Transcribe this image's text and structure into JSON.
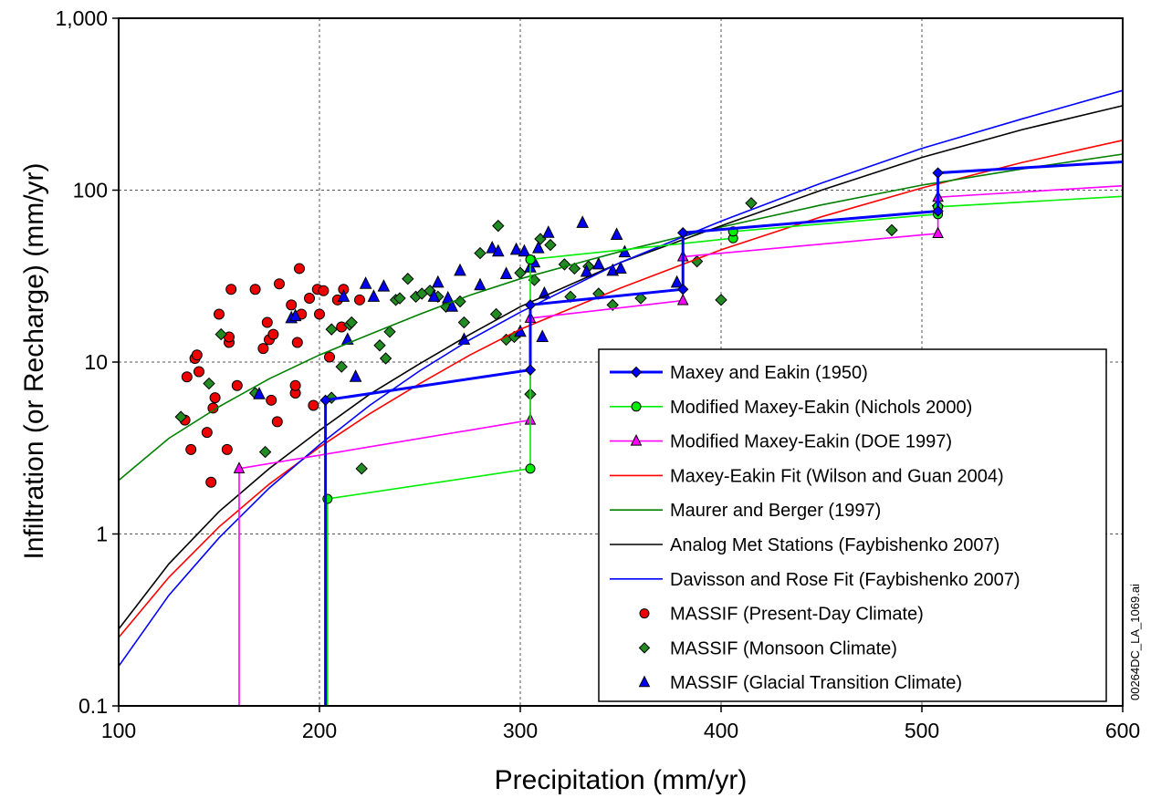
{
  "chart_data": {
    "type": "scatter",
    "title": "",
    "xlabel": "Precipitation (mm/yr)",
    "ylabel": "Infiltration (or Recharge) (mm/yr)",
    "xlim": [
      100,
      600
    ],
    "ylim": [
      0.1,
      1000
    ],
    "y_scale": "log",
    "grid": true,
    "legend_position": "bottom-right",
    "x_ticks": [
      "100",
      "200",
      "300",
      "400",
      "500",
      "600"
    ],
    "y_ticks": [
      "0.1",
      "1",
      "10",
      "100",
      "1,000"
    ],
    "side_note": "00264DC_LA_1069.ai",
    "series": [
      {
        "name": "Maxey and Eakin (1950)",
        "kind": "step-line",
        "color": "#0000ff",
        "marker": "diamond",
        "points": [
          [
            203,
            0.1
          ],
          [
            203,
            6.0
          ],
          [
            305,
            9.0
          ],
          [
            305,
            21.5
          ],
          [
            381,
            26.5
          ],
          [
            381,
            56.5
          ],
          [
            508,
            75.5
          ],
          [
            508,
            126
          ],
          [
            600,
            146
          ]
        ],
        "markers": [
          [
            203,
            6.0
          ],
          [
            305,
            9.0
          ],
          [
            305,
            21.5
          ],
          [
            381,
            26.5
          ],
          [
            381,
            56.5
          ],
          [
            508,
            75.5
          ],
          [
            508,
            126
          ]
        ]
      },
      {
        "name": "Modified Maxey-Eakin (Nichols 2000)",
        "kind": "step-line",
        "color": "#00ee00",
        "marker": "circle",
        "points": [
          [
            204,
            0.1
          ],
          [
            204,
            1.6
          ],
          [
            305,
            2.4
          ],
          [
            305,
            39.5
          ],
          [
            406,
            52.5
          ],
          [
            406,
            57.5
          ],
          [
            508,
            72.5
          ],
          [
            508,
            80.0
          ],
          [
            600,
            92.0
          ]
        ],
        "markers": [
          [
            204,
            1.6
          ],
          [
            305,
            2.4
          ],
          [
            305,
            39.5
          ],
          [
            406,
            52.5
          ],
          [
            406,
            57.5
          ],
          [
            508,
            72.5
          ],
          [
            508,
            80.0
          ]
        ]
      },
      {
        "name": "Modified Maxey-Eakin (DOE 1997)",
        "kind": "step-line",
        "color": "#ff00ff",
        "marker": "triangle",
        "points": [
          [
            160,
            0.1
          ],
          [
            160,
            2.4
          ],
          [
            305,
            4.6
          ],
          [
            305,
            18.0
          ],
          [
            381,
            22.8
          ],
          [
            381,
            41.0
          ],
          [
            508,
            56.0
          ],
          [
            508,
            91.0
          ],
          [
            600,
            106
          ]
        ],
        "markers": [
          [
            160,
            2.4
          ],
          [
            305,
            4.6
          ],
          [
            305,
            18.0
          ],
          [
            381,
            22.8
          ],
          [
            381,
            41.0
          ],
          [
            508,
            56.0
          ],
          [
            508,
            91.0
          ]
        ]
      },
      {
        "name": "Maxey-Eakin Fit (Wilson and Guan 2004)",
        "kind": "line",
        "color": "#ff0000",
        "points": [
          [
            100,
            0.25
          ],
          [
            125,
            0.56
          ],
          [
            150,
            1.1
          ],
          [
            175,
            1.95
          ],
          [
            200,
            3.2
          ],
          [
            225,
            5.0
          ],
          [
            250,
            7.5
          ],
          [
            275,
            11.0
          ],
          [
            300,
            15.5
          ],
          [
            350,
            27.0
          ],
          [
            400,
            45.0
          ],
          [
            450,
            70.0
          ],
          [
            500,
            103
          ],
          [
            550,
            145
          ],
          [
            600,
            195
          ]
        ]
      },
      {
        "name": "Maurer and Berger (1997)",
        "kind": "line",
        "color": "#008000",
        "points": [
          [
            100,
            2.05
          ],
          [
            125,
            3.6
          ],
          [
            150,
            5.5
          ],
          [
            175,
            8.0
          ],
          [
            200,
            11.0
          ],
          [
            225,
            14.5
          ],
          [
            250,
            19.0
          ],
          [
            275,
            24.5
          ],
          [
            300,
            30.5
          ],
          [
            350,
            44.0
          ],
          [
            400,
            61.0
          ],
          [
            450,
            82.0
          ],
          [
            500,
            107
          ],
          [
            550,
            133
          ],
          [
            600,
            162
          ]
        ]
      },
      {
        "name": "Analog Met Stations (Faybishenko 2007)",
        "kind": "line",
        "color": "#000000",
        "points": [
          [
            100,
            0.28
          ],
          [
            125,
            0.67
          ],
          [
            150,
            1.35
          ],
          [
            175,
            2.4
          ],
          [
            200,
            4.0
          ],
          [
            225,
            6.5
          ],
          [
            250,
            9.8
          ],
          [
            275,
            14.5
          ],
          [
            300,
            21.0
          ],
          [
            350,
            38.0
          ],
          [
            400,
            62.0
          ],
          [
            450,
            100
          ],
          [
            500,
            155
          ],
          [
            550,
            225
          ],
          [
            600,
            310
          ]
        ]
      },
      {
        "name": "Davisson and Rose Fit (Faybishenko 2007)",
        "kind": "line",
        "color": "#0000ff",
        "points": [
          [
            100,
            0.17
          ],
          [
            125,
            0.44
          ],
          [
            150,
            0.95
          ],
          [
            175,
            1.85
          ],
          [
            200,
            3.3
          ],
          [
            225,
            5.6
          ],
          [
            250,
            8.9
          ],
          [
            275,
            13.5
          ],
          [
            300,
            19.5
          ],
          [
            350,
            38.0
          ],
          [
            400,
            66.0
          ],
          [
            450,
            110
          ],
          [
            500,
            175
          ],
          [
            550,
            260
          ],
          [
            600,
            380
          ]
        ]
      },
      {
        "name": "MASSIF (Present-Day Climate)",
        "kind": "scatter",
        "color": "#ee0000",
        "marker": "circle",
        "points": [
          [
            133,
            4.6
          ],
          [
            134,
            8.2
          ],
          [
            136,
            3.1
          ],
          [
            138,
            10.5
          ],
          [
            139,
            11.0
          ],
          [
            140,
            8.8
          ],
          [
            144,
            3.9
          ],
          [
            146,
            2.0
          ],
          [
            147,
            5.4
          ],
          [
            148,
            6.2
          ],
          [
            150,
            19.0
          ],
          [
            154,
            3.1
          ],
          [
            155,
            13.0
          ],
          [
            155,
            14.0
          ],
          [
            156,
            26.5
          ],
          [
            159,
            7.3
          ],
          [
            168,
            26.5
          ],
          [
            172,
            12.0
          ],
          [
            174,
            17.0
          ],
          [
            175,
            13.5
          ],
          [
            176,
            6.0
          ],
          [
            177,
            14.5
          ],
          [
            179,
            4.5
          ],
          [
            180,
            28.5
          ],
          [
            186,
            21.5
          ],
          [
            188,
            6.6
          ],
          [
            188,
            7.3
          ],
          [
            189,
            13.0
          ],
          [
            190,
            35.0
          ],
          [
            191,
            19.0
          ],
          [
            195,
            23.5
          ],
          [
            197,
            5.6
          ],
          [
            199,
            26.5
          ],
          [
            200,
            19.0
          ],
          [
            202,
            26.0
          ],
          [
            205,
            10.7
          ],
          [
            209,
            23.0
          ],
          [
            211,
            16.0
          ],
          [
            212,
            26.5
          ],
          [
            220,
            23.0
          ]
        ]
      },
      {
        "name": "MASSIF (Monsoon Climate)",
        "kind": "scatter",
        "color": "#228b22",
        "marker": "diamond",
        "points": [
          [
            131,
            4.8
          ],
          [
            145,
            7.5
          ],
          [
            151,
            14.5
          ],
          [
            168,
            6.6
          ],
          [
            173,
            3.0
          ],
          [
            206,
            6.2
          ],
          [
            206,
            15.5
          ],
          [
            211,
            9.4
          ],
          [
            215,
            16.5
          ],
          [
            216,
            17.0
          ],
          [
            221,
            2.4
          ],
          [
            230,
            12.5
          ],
          [
            233,
            10.5
          ],
          [
            235,
            15.0
          ],
          [
            238,
            23.0
          ],
          [
            240,
            23.5
          ],
          [
            244,
            30.5
          ],
          [
            248,
            24.0
          ],
          [
            251,
            25.0
          ],
          [
            255,
            26.0
          ],
          [
            259,
            24.0
          ],
          [
            263,
            21.0
          ],
          [
            270,
            22.5
          ],
          [
            272,
            17.0
          ],
          [
            280,
            43.0
          ],
          [
            288,
            19.0
          ],
          [
            289,
            62.0
          ],
          [
            293,
            13.5
          ],
          [
            297,
            14.0
          ],
          [
            300,
            33.0
          ],
          [
            305,
            6.5
          ],
          [
            307,
            30.0
          ],
          [
            310,
            52.0
          ],
          [
            315,
            48.0
          ],
          [
            322,
            37.0
          ],
          [
            325,
            24.0
          ],
          [
            327,
            35.0
          ],
          [
            334,
            36.0
          ],
          [
            339,
            25.0
          ],
          [
            346,
            21.5
          ],
          [
            360,
            23.5
          ],
          [
            388,
            38.5
          ],
          [
            400,
            23.0
          ],
          [
            415,
            84.0
          ],
          [
            485,
            58.5
          ],
          [
            508,
            81.0
          ]
        ]
      },
      {
        "name": "MASSIF (Glacial Transition Climate)",
        "kind": "scatter",
        "color": "#0000ee",
        "marker": "triangle",
        "points": [
          [
            170,
            6.5
          ],
          [
            186,
            18.0
          ],
          [
            188,
            18.5
          ],
          [
            212,
            24.0
          ],
          [
            214,
            13.5
          ],
          [
            218,
            8.2
          ],
          [
            223,
            28.5
          ],
          [
            227,
            24.0
          ],
          [
            232,
            27.5
          ],
          [
            257,
            24.0
          ],
          [
            259,
            29.0
          ],
          [
            264,
            23.5
          ],
          [
            266,
            21.0
          ],
          [
            270,
            34.0
          ],
          [
            272,
            13.5
          ],
          [
            280,
            28.0
          ],
          [
            286,
            46.0
          ],
          [
            289,
            44.0
          ],
          [
            293,
            32.5
          ],
          [
            298,
            45.0
          ],
          [
            300,
            15.0
          ],
          [
            302,
            44.0
          ],
          [
            305,
            35.5
          ],
          [
            307,
            38.0
          ],
          [
            309,
            46.0
          ],
          [
            311,
            14.0
          ],
          [
            312,
            25.0
          ],
          [
            314,
            56.5
          ],
          [
            331,
            64.5
          ],
          [
            333,
            33.5
          ],
          [
            339,
            37.0
          ],
          [
            346,
            34.0
          ],
          [
            348,
            55.0
          ],
          [
            350,
            35.0
          ],
          [
            352,
            43.5
          ],
          [
            378,
            29.0
          ]
        ]
      }
    ]
  }
}
